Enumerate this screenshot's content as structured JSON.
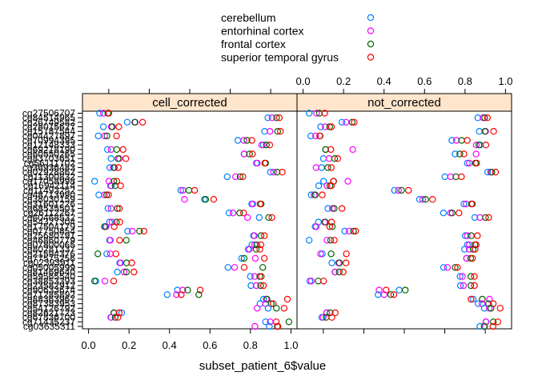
{
  "chart_data": {
    "type": "scatter",
    "chart_kind": "lattice dotplot",
    "xlabel": "subset_patient_6$value",
    "xlim": [
      -0.03,
      1.03
    ],
    "x_ticks": [
      0.0,
      0.2,
      0.4,
      0.6,
      0.8,
      1.0
    ],
    "x_tick_labels": [
      "0.0",
      "0.2",
      "0.4",
      "0.6",
      "0.8",
      "1.0"
    ],
    "legend": {
      "placement": "top",
      "entries": [
        {
          "name": "cerebellum",
          "color": "#0080ff"
        },
        {
          "name": "entorhinal cortex",
          "color": "#ff00ff"
        },
        {
          "name": "frontal cortex",
          "color": "#006400"
        },
        {
          "name": "superior temporal gyrus",
          "color": "#ff0000"
        }
      ]
    },
    "panels": [
      "cell_corrected",
      "not_corrected"
    ],
    "y_first_label": "cg27506707",
    "y_last_label": "cg03635311",
    "n_rows": 48,
    "base_levels": [
      0.05,
      0.88,
      0.2,
      0.08,
      0.88,
      0.05,
      0.75,
      0.85,
      0.1,
      0.75,
      0.12,
      0.82,
      0.1,
      0.9,
      0.7,
      0.08,
      0.1,
      0.45,
      0.05,
      0.55,
      0.8,
      0.1,
      0.7,
      0.85,
      0.1,
      0.07,
      0.2,
      0.8,
      0.1,
      0.8,
      0.78,
      0.08,
      0.8,
      0.15,
      0.7,
      0.15,
      0.8,
      0.05,
      0.8,
      0.45,
      0.4,
      0.85,
      0.85,
      0.9,
      0.1,
      0.1,
      0.88,
      0.88
    ],
    "offsets": [
      0.0,
      0.02,
      0.04,
      0.06
    ],
    "grid": false
  }
}
